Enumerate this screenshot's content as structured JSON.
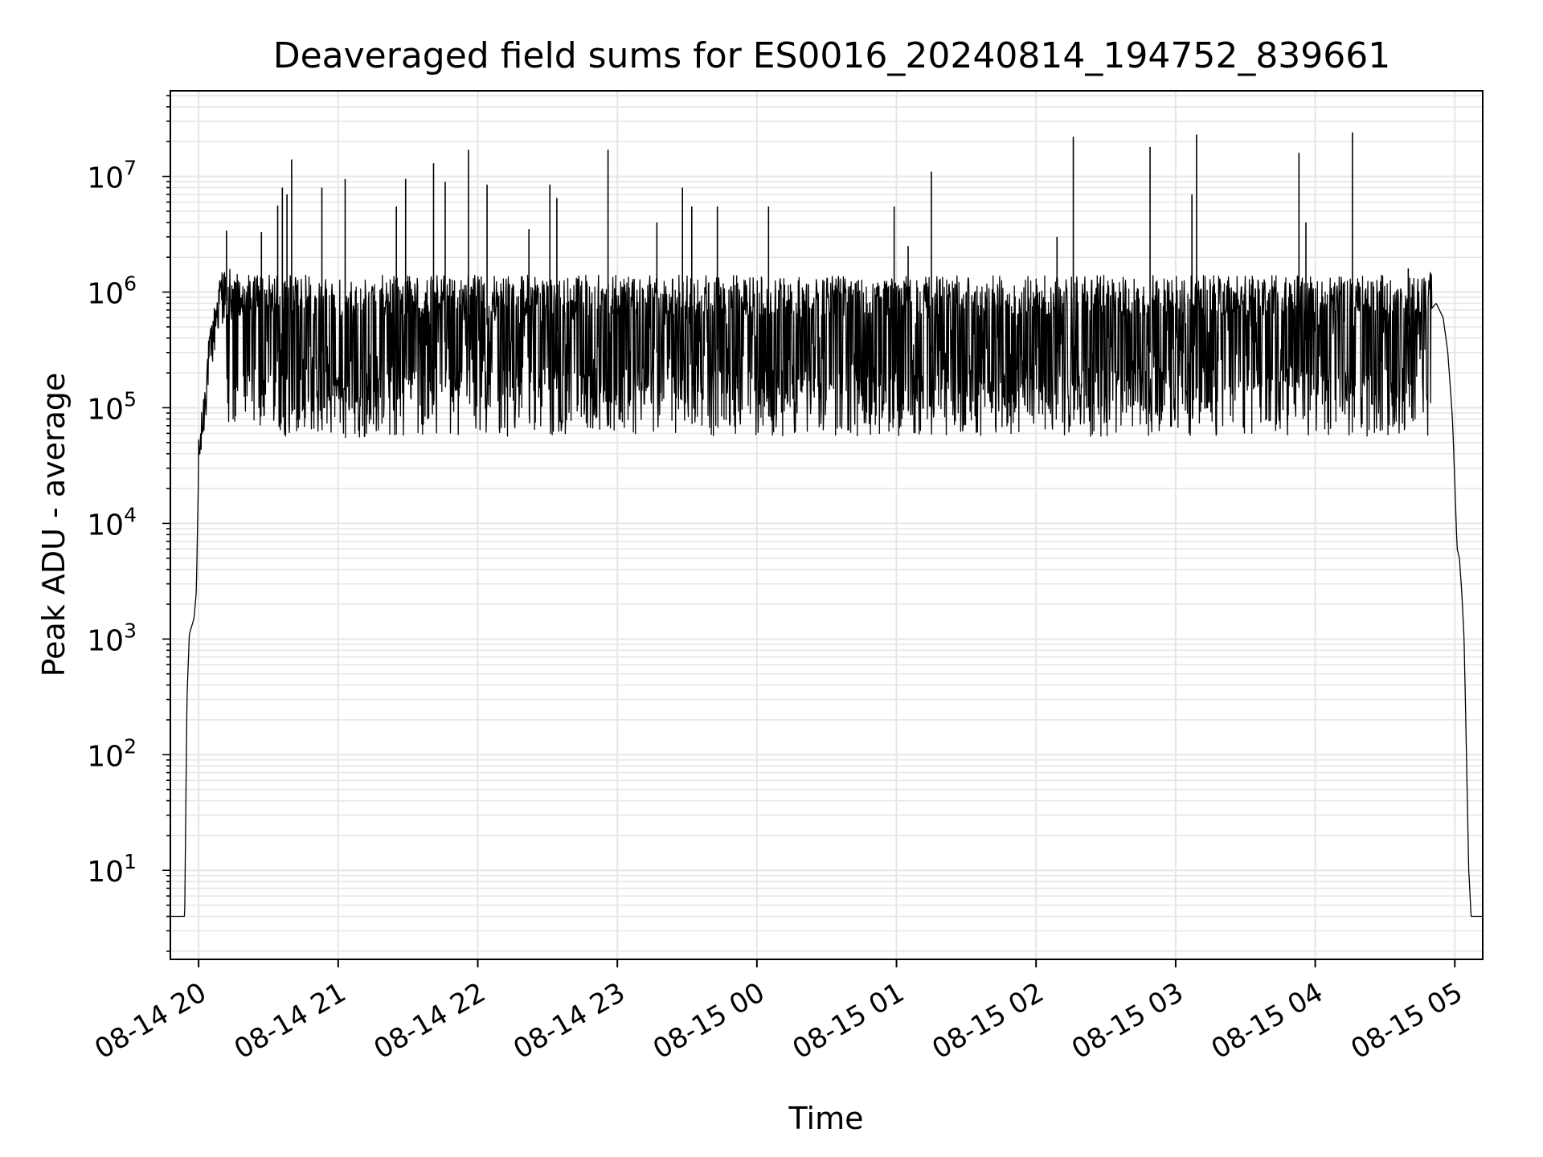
{
  "chart_data": {
    "type": "line",
    "title": "Deaveraged field sums for ES0016_20240814_194752_839661",
    "xlabel": "Time",
    "ylabel": "Peak ADU - average",
    "yscale": "log",
    "ylim": [
      1.7,
      55000000
    ],
    "xlim": [
      "2024-08-14 19:47:52",
      "2024-08-15 05:12:00"
    ],
    "grid": true,
    "legend": "none",
    "x_tick_labels": [
      "08-14 20",
      "08-14 21",
      "08-14 22",
      "08-14 23",
      "08-15 00",
      "08-15 01",
      "08-15 02",
      "08-15 03",
      "08-15 04",
      "08-15 05"
    ],
    "x_ticks": [
      "2024-08-14 20:00",
      "2024-08-14 21:00",
      "2024-08-14 22:00",
      "2024-08-14 23:00",
      "2024-08-15 00:00",
      "2024-08-15 01:00",
      "2024-08-15 02:00",
      "2024-08-15 03:00",
      "2024-08-15 04:00",
      "2024-08-15 05:00"
    ],
    "y_ticks": [
      10,
      100,
      1000,
      10000,
      100000,
      1000000,
      10000000
    ],
    "y_tick_labels": [
      {
        "base": "10",
        "exp": "1"
      },
      {
        "base": "10",
        "exp": "2"
      },
      {
        "base": "10",
        "exp": "3"
      },
      {
        "base": "10",
        "exp": "4"
      },
      {
        "base": "10",
        "exp": "5"
      },
      {
        "base": "10",
        "exp": "6"
      },
      {
        "base": "10",
        "exp": "7"
      }
    ],
    "colors": {
      "line": "#000000",
      "grid": "#e6e6e6",
      "axes": "#000000"
    },
    "series": [
      {
        "values": [
          [
            "2024-08-14 19:48",
            4
          ],
          [
            "2024-08-14 19:51",
            4
          ],
          [
            "2024-08-14 19:54",
            4
          ],
          [
            "2024-08-14 19:55",
            300
          ],
          [
            "2024-08-14 19:56",
            1100
          ],
          [
            "2024-08-14 19:58",
            1500
          ],
          [
            "2024-08-14 19:59",
            2500
          ],
          [
            "2024-08-14 20:00",
            30000
          ],
          [
            "2024-08-14 20:02",
            70000
          ],
          [
            "2024-08-14 20:04",
            200000
          ],
          [
            "2024-08-14 20:06",
            350000
          ],
          [
            "2024-08-14 20:08",
            600000
          ],
          [
            "2024-08-14 20:10",
            900000
          ],
          [
            "2024-08-14 20:13",
            800000
          ],
          [
            "2024-08-14 20:16",
            750000
          ],
          [
            "2024-08-14 20:20",
            600000
          ],
          [
            "2024-08-14 20:30",
            400000
          ],
          [
            "2024-08-14 20:40",
            200000
          ],
          [
            "2024-08-14 20:50",
            150000
          ],
          [
            "2024-08-14 21:00",
            140000
          ],
          [
            "2024-08-14 21:10",
            120000
          ],
          [
            "2024-08-14 21:20",
            150000
          ],
          [
            "2024-08-14 21:30",
            250000
          ],
          [
            "2024-08-14 21:40",
            350000
          ],
          [
            "2024-08-14 21:50",
            400000
          ],
          [
            "2024-08-14 22:00",
            500000
          ],
          [
            "2024-08-14 22:10",
            550000
          ],
          [
            "2024-08-14 22:20",
            600000
          ],
          [
            "2024-08-14 22:30",
            550000
          ],
          [
            "2024-08-14 22:40",
            350000
          ],
          [
            "2024-08-14 22:50",
            200000
          ],
          [
            "2024-08-14 23:00",
            180000
          ],
          [
            "2024-08-14 23:15",
            250000
          ],
          [
            "2024-08-14 23:30",
            300000
          ],
          [
            "2024-08-14 23:45",
            320000
          ],
          [
            "2024-08-15 00:00",
            300000
          ],
          [
            "2024-08-15 00:15",
            280000
          ],
          [
            "2024-08-15 00:30",
            200000
          ],
          [
            "2024-08-15 00:45",
            180000
          ],
          [
            "2024-08-15 01:00",
            200000
          ],
          [
            "2024-08-15 01:15",
            250000
          ],
          [
            "2024-08-15 01:30",
            250000
          ],
          [
            "2024-08-15 01:45",
            220000
          ],
          [
            "2024-08-15 02:00",
            200000
          ],
          [
            "2024-08-15 02:15",
            180000
          ],
          [
            "2024-08-15 02:30",
            170000
          ],
          [
            "2024-08-15 02:45",
            180000
          ],
          [
            "2024-08-15 03:00",
            200000
          ],
          [
            "2024-08-15 03:15",
            250000
          ],
          [
            "2024-08-15 03:30",
            300000
          ],
          [
            "2024-08-15 03:45",
            350000
          ],
          [
            "2024-08-15 04:00",
            400000
          ],
          [
            "2024-08-15 04:15",
            420000
          ],
          [
            "2024-08-15 04:30",
            450000
          ],
          [
            "2024-08-15 04:45",
            550000
          ],
          [
            "2024-08-15 04:52",
            800000
          ],
          [
            "2024-08-15 04:55",
            600000
          ],
          [
            "2024-08-15 04:57",
            300000
          ],
          [
            "2024-08-15 04:59",
            80000
          ],
          [
            "2024-08-15 05:01",
            6000
          ],
          [
            "2024-08-15 05:02",
            5000
          ],
          [
            "2024-08-15 05:03",
            2500
          ],
          [
            "2024-08-15 05:04",
            1000
          ],
          [
            "2024-08-15 05:05",
            100
          ],
          [
            "2024-08-15 05:06",
            10
          ],
          [
            "2024-08-15 05:07",
            4
          ],
          [
            "2024-08-15 05:09",
            4
          ],
          [
            "2024-08-15 05:12",
            4
          ]
        ],
        "spikes": [
          [
            "2024-08-14 20:12",
            3400000
          ],
          [
            "2024-08-14 20:27",
            3300000
          ],
          [
            "2024-08-14 20:34",
            5600000
          ],
          [
            "2024-08-14 20:36",
            8000000
          ],
          [
            "2024-08-14 20:38",
            7000000
          ],
          [
            "2024-08-14 20:40",
            14000000
          ],
          [
            "2024-08-14 20:53",
            8000000
          ],
          [
            "2024-08-14 21:03",
            9500000
          ],
          [
            "2024-08-14 21:25",
            5500000
          ],
          [
            "2024-08-14 21:29",
            9500000
          ],
          [
            "2024-08-14 21:41",
            13000000
          ],
          [
            "2024-08-14 21:46",
            9000000
          ],
          [
            "2024-08-14 21:56",
            17000000
          ],
          [
            "2024-08-14 22:04",
            8500000
          ],
          [
            "2024-08-14 22:22",
            3500000
          ],
          [
            "2024-08-14 22:31",
            8500000
          ],
          [
            "2024-08-14 22:34",
            6500000
          ],
          [
            "2024-08-14 22:56",
            17000000
          ],
          [
            "2024-08-14 23:17",
            4000000
          ],
          [
            "2024-08-14 23:28",
            8000000
          ],
          [
            "2024-08-14 23:32",
            5500000
          ],
          [
            "2024-08-14 23:43",
            5500000
          ],
          [
            "2024-08-15 00:05",
            5500000
          ],
          [
            "2024-08-15 00:59",
            5500000
          ],
          [
            "2024-08-15 01:05",
            2500000
          ],
          [
            "2024-08-15 01:15",
            11000000
          ],
          [
            "2024-08-15 02:09",
            3000000
          ],
          [
            "2024-08-15 02:16",
            22000000
          ],
          [
            "2024-08-15 02:49",
            18000000
          ],
          [
            "2024-08-15 03:07",
            7000000
          ],
          [
            "2024-08-15 03:09",
            23000000
          ],
          [
            "2024-08-15 03:53",
            16000000
          ],
          [
            "2024-08-15 03:56",
            4000000
          ],
          [
            "2024-08-15 04:16",
            24000000
          ],
          [
            "2024-08-15 04:40",
            1600000
          ]
        ],
        "band_range": [
          40000,
          1400000
        ]
      }
    ]
  }
}
